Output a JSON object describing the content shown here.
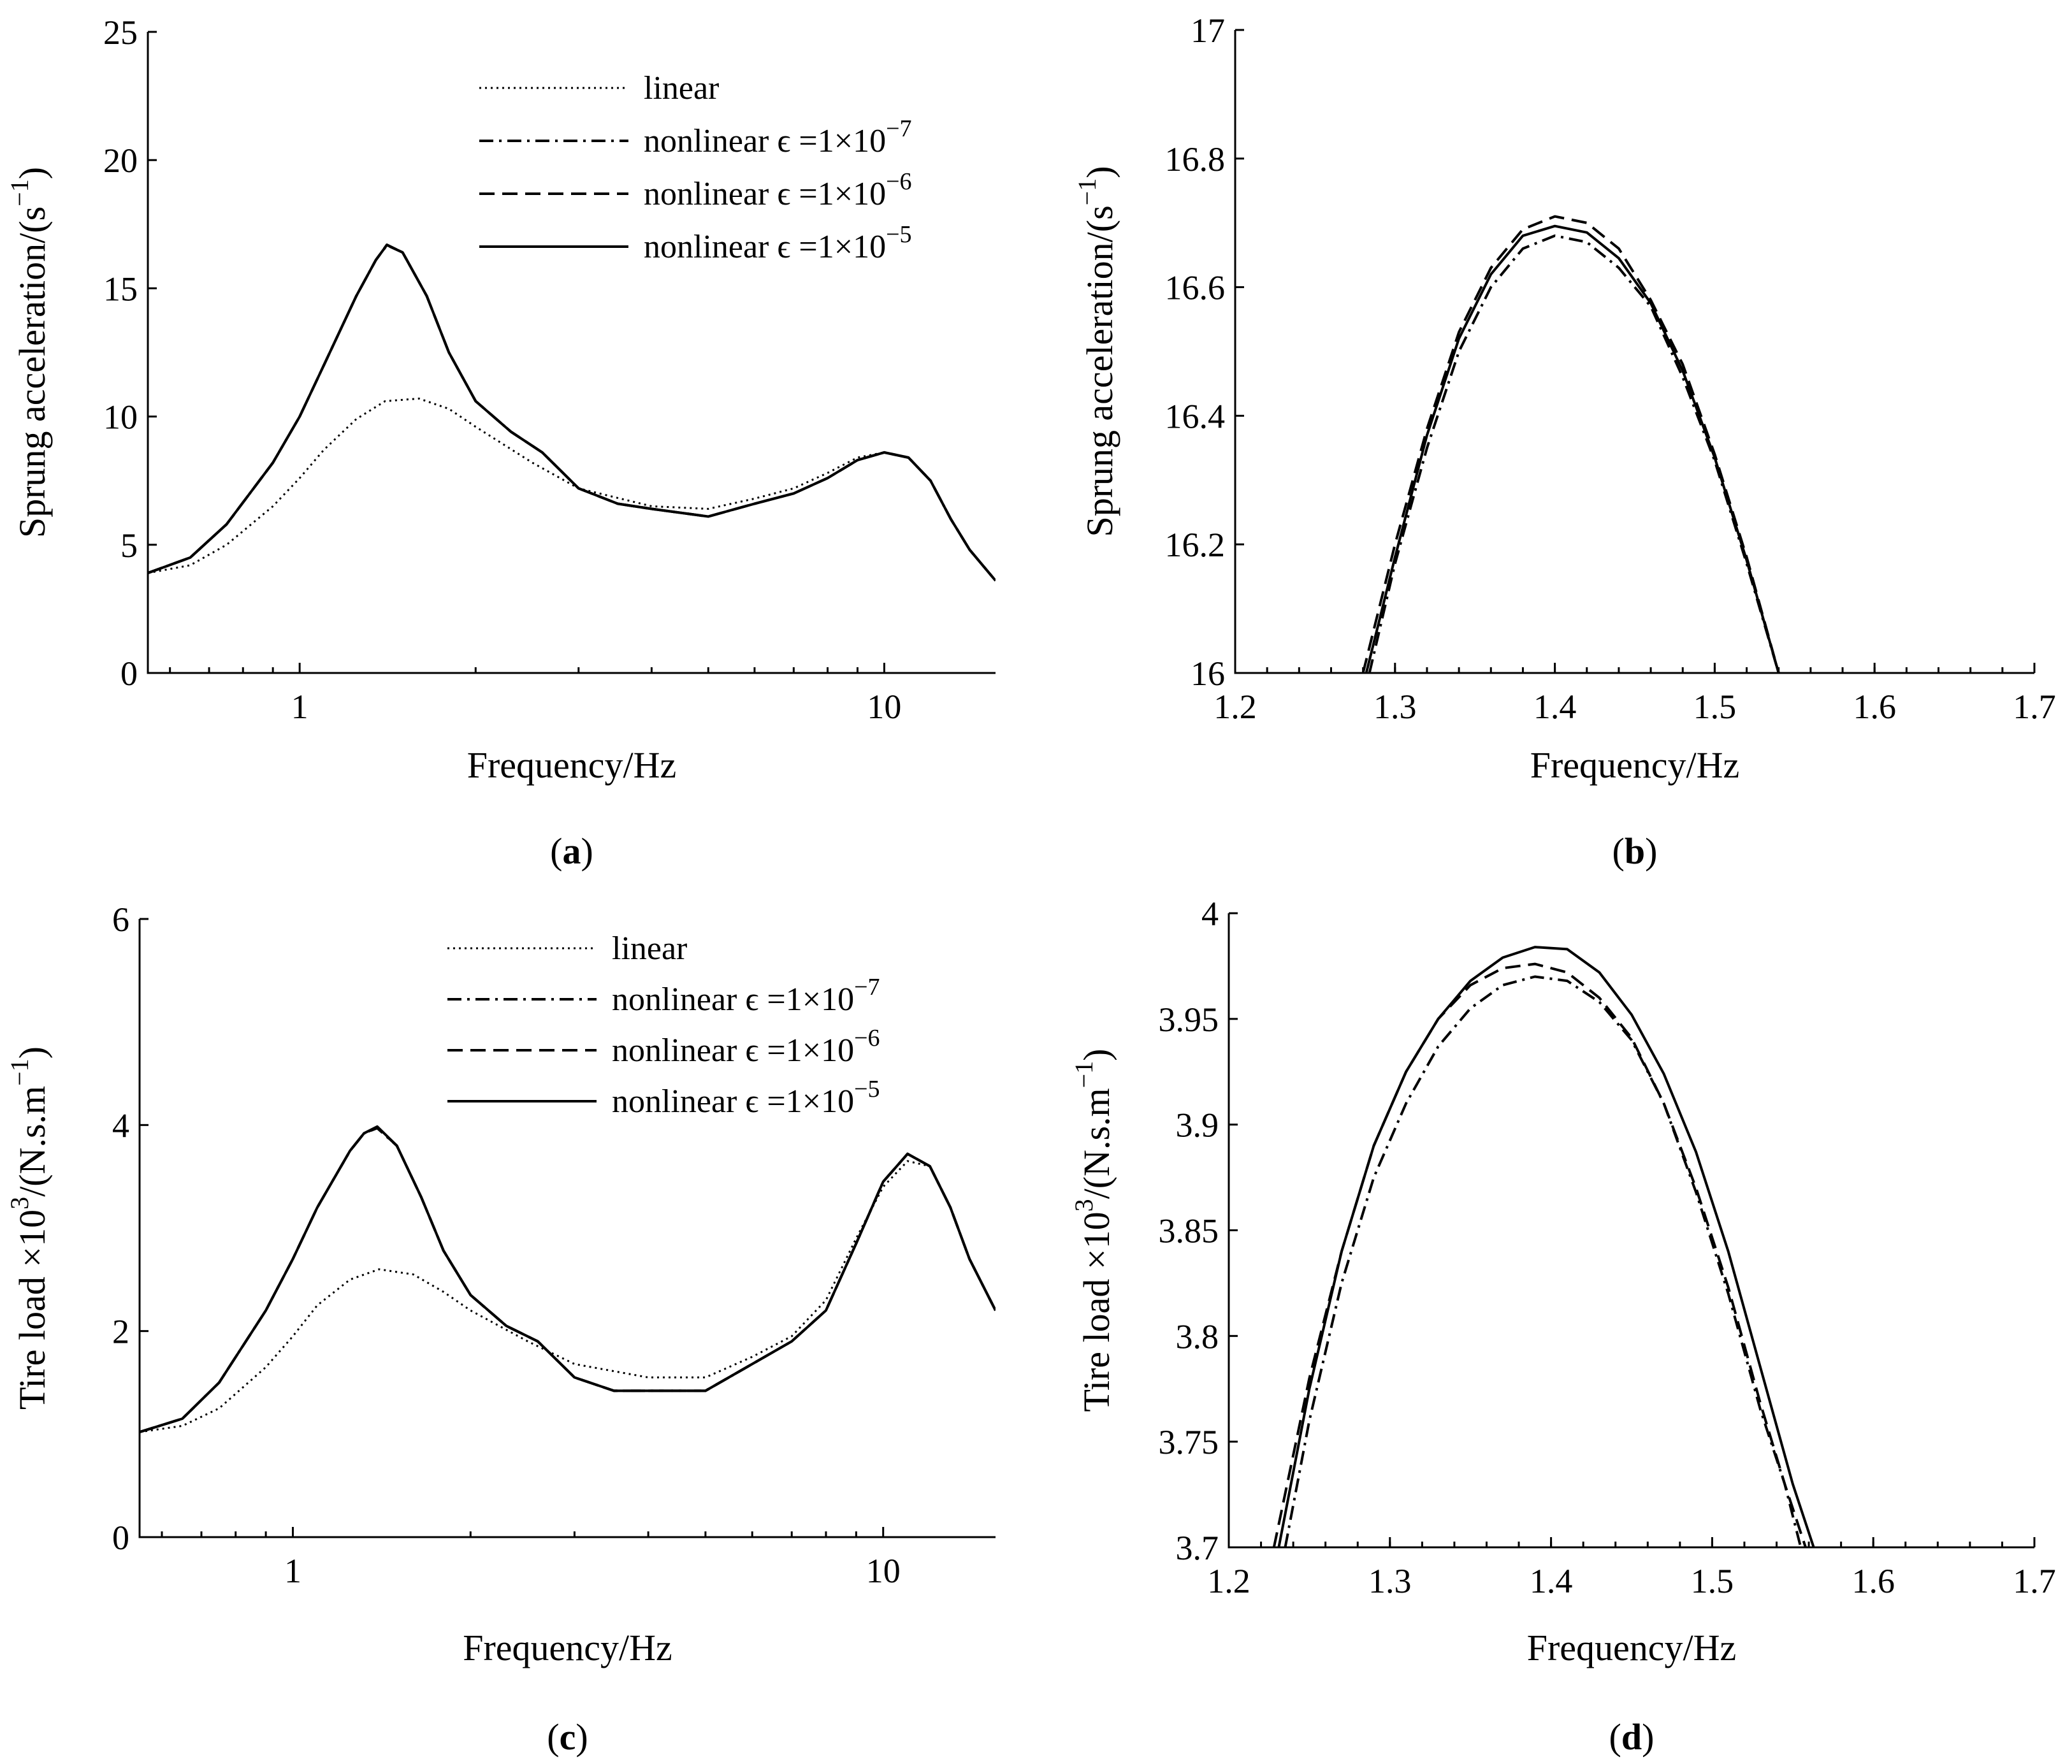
{
  "styles": [
    {
      "key": "linear",
      "width": 3,
      "dash": "3,6"
    },
    {
      "key": "e7",
      "width": 4,
      "dash": "22,9,4,9"
    },
    {
      "key": "e6",
      "width": 4,
      "dash": "24,12"
    },
    {
      "key": "e5",
      "width": 4,
      "dash": ""
    }
  ],
  "chart_data": [
    {
      "id": "a",
      "type": "line",
      "xscale": "log",
      "xlim": [
        0.55,
        15.5
      ],
      "ylim": [
        0,
        25
      ],
      "xticks": [
        1,
        10
      ],
      "xtick_labels": [
        "1",
        "10"
      ],
      "yticks": [
        0,
        5,
        10,
        15,
        20,
        25
      ],
      "ytick_labels": [
        "0",
        "5",
        "10",
        "15",
        "20",
        "25"
      ],
      "xlabel": "Frequency/Hz",
      "ylabel": "Sprung acceleration/(s",
      "ylabel_sup": "−1",
      "ylabel_close": ")",
      "caption": "a",
      "legend": {
        "placement": "top-center",
        "entries": [
          {
            "label": "linear",
            "sup": ""
          },
          {
            "label": "nonlinear ϵ =1×10",
            "sup": "−7"
          },
          {
            "label": "nonlinear ϵ =1×10",
            "sup": "−6"
          },
          {
            "label": "nonlinear ϵ =1×10",
            "sup": "−5"
          }
        ]
      },
      "series": [
        {
          "name": "linear",
          "style": 0,
          "x": [
            0.55,
            0.65,
            0.75,
            0.9,
            1.0,
            1.1,
            1.25,
            1.4,
            1.6,
            1.8,
            2.0,
            2.5,
            3.0,
            4.0,
            5.0,
            6.0,
            7.0,
            8.0,
            9.0,
            10.0,
            11.0,
            12.0,
            13.0,
            14.0,
            15.5
          ],
          "y": [
            3.9,
            4.2,
            5.0,
            6.5,
            7.6,
            8.7,
            9.9,
            10.6,
            10.7,
            10.3,
            9.6,
            8.2,
            7.2,
            6.5,
            6.4,
            6.8,
            7.2,
            7.8,
            8.4,
            8.6,
            8.4,
            7.5,
            6.0,
            4.8,
            3.6
          ]
        },
        {
          "name": "nonlinear ϵ =1×10⁻⁷",
          "style": 1,
          "x": [
            0.55,
            0.65,
            0.75,
            0.9,
            1.0,
            1.1,
            1.25,
            1.35,
            1.41,
            1.5,
            1.65,
            1.8,
            2.0,
            2.3,
            2.6,
            3.0,
            3.5,
            4.0,
            5.0,
            6.0,
            7.0,
            8.0,
            9.0,
            10.0,
            11.0,
            12.0,
            13.0,
            14.0,
            15.5
          ],
          "y": [
            3.9,
            4.5,
            5.8,
            8.2,
            10.0,
            12.0,
            14.7,
            16.1,
            16.68,
            16.4,
            14.7,
            12.5,
            10.6,
            9.4,
            8.6,
            7.2,
            6.6,
            6.4,
            6.1,
            6.6,
            7.0,
            7.6,
            8.3,
            8.6,
            8.4,
            7.5,
            6.0,
            4.8,
            3.6
          ]
        },
        {
          "name": "nonlinear ϵ =1×10⁻⁶",
          "style": 2,
          "x": [
            0.55,
            0.65,
            0.75,
            0.9,
            1.0,
            1.1,
            1.25,
            1.35,
            1.41,
            1.5,
            1.65,
            1.8,
            2.0,
            2.3,
            2.6,
            3.0,
            3.5,
            4.0,
            5.0,
            6.0,
            7.0,
            8.0,
            9.0,
            10.0,
            11.0,
            12.0,
            13.0,
            14.0,
            15.5
          ],
          "y": [
            3.9,
            4.5,
            5.8,
            8.2,
            10.0,
            12.0,
            14.7,
            16.1,
            16.7,
            16.4,
            14.7,
            12.5,
            10.6,
            9.4,
            8.6,
            7.2,
            6.6,
            6.4,
            6.1,
            6.6,
            7.0,
            7.6,
            8.3,
            8.6,
            8.4,
            7.5,
            6.0,
            4.8,
            3.6
          ]
        },
        {
          "name": "nonlinear ϵ =1×10⁻⁵",
          "style": 3,
          "x": [
            0.55,
            0.65,
            0.75,
            0.9,
            1.0,
            1.1,
            1.25,
            1.35,
            1.41,
            1.5,
            1.65,
            1.8,
            2.0,
            2.3,
            2.6,
            3.0,
            3.5,
            4.0,
            5.0,
            6.0,
            7.0,
            8.0,
            9.0,
            10.0,
            11.0,
            12.0,
            13.0,
            14.0,
            15.5
          ],
          "y": [
            3.9,
            4.5,
            5.8,
            8.2,
            10.0,
            12.0,
            14.7,
            16.1,
            16.69,
            16.4,
            14.7,
            12.5,
            10.6,
            9.4,
            8.6,
            7.2,
            6.6,
            6.4,
            6.1,
            6.6,
            7.0,
            7.6,
            8.3,
            8.6,
            8.4,
            7.5,
            6.0,
            4.8,
            3.6
          ]
        }
      ]
    },
    {
      "id": "b",
      "type": "line",
      "xscale": "linear",
      "xlim": [
        1.2,
        1.7
      ],
      "ylim": [
        16,
        17
      ],
      "xticks": [
        1.2,
        1.3,
        1.4,
        1.5,
        1.6,
        1.7
      ],
      "xtick_labels": [
        "1.2",
        "1.3",
        "1.4",
        "1.5",
        "1.6",
        "1.7"
      ],
      "yticks": [
        16,
        16.2,
        16.4,
        16.6,
        16.8,
        17
      ],
      "ytick_labels": [
        "16",
        "16.2",
        "16.4",
        "16.6",
        "16.8",
        "17"
      ],
      "xlabel": "Frequency/Hz",
      "ylabel": "Sprung acceleration/(s",
      "ylabel_sup": "−1",
      "ylabel_close": ")",
      "caption": "b",
      "series": [
        {
          "name": "nonlinear ϵ =1×10⁻⁷",
          "style": 1,
          "x": [
            1.284,
            1.3,
            1.32,
            1.34,
            1.36,
            1.38,
            1.4,
            1.42,
            1.44,
            1.46,
            1.48,
            1.5,
            1.52,
            1.54
          ],
          "y": [
            16.0,
            16.17,
            16.35,
            16.5,
            16.6,
            16.66,
            16.68,
            16.67,
            16.63,
            16.57,
            16.46,
            16.33,
            16.17,
            16.0
          ]
        },
        {
          "name": "nonlinear ϵ =1×10⁻⁶",
          "style": 2,
          "x": [
            1.28,
            1.3,
            1.32,
            1.34,
            1.36,
            1.38,
            1.4,
            1.42,
            1.44,
            1.46,
            1.48,
            1.5,
            1.52,
            1.54
          ],
          "y": [
            16.0,
            16.2,
            16.38,
            16.53,
            16.63,
            16.69,
            16.71,
            16.7,
            16.66,
            16.58,
            16.48,
            16.34,
            16.18,
            16.0
          ]
        },
        {
          "name": "nonlinear ϵ =1×10⁻⁵",
          "style": 3,
          "x": [
            1.282,
            1.3,
            1.32,
            1.34,
            1.36,
            1.38,
            1.4,
            1.42,
            1.44,
            1.46,
            1.48,
            1.5,
            1.52,
            1.54
          ],
          "y": [
            16.0,
            16.18,
            16.37,
            16.52,
            16.62,
            16.68,
            16.695,
            16.685,
            16.645,
            16.575,
            16.47,
            16.335,
            16.175,
            16.0
          ]
        }
      ]
    },
    {
      "id": "c",
      "type": "line",
      "xscale": "log",
      "xlim": [
        0.55,
        15.5
      ],
      "ylim": [
        0,
        6
      ],
      "xticks": [
        1,
        10
      ],
      "xtick_labels": [
        "1",
        "10"
      ],
      "yticks": [
        0,
        2,
        4,
        6
      ],
      "ytick_labels": [
        "0",
        "2",
        "4",
        "6"
      ],
      "xlabel": "Frequency/Hz",
      "ylabel": "Tire load ×10",
      "ylabel_sup": "3",
      "ylabel_mid": "/(N.s.m",
      "ylabel_sup2": "−1",
      "ylabel_close": ")",
      "caption": "c",
      "legend": {
        "placement": "top-center",
        "entries": [
          {
            "label": "linear",
            "sup": ""
          },
          {
            "label": "nonlinear ϵ =1×10",
            "sup": "−7"
          },
          {
            "label": "nonlinear ϵ =1×10",
            "sup": "−6"
          },
          {
            "label": "nonlinear ϵ =1×10",
            "sup": "−5"
          }
        ]
      },
      "series": [
        {
          "name": "linear",
          "style": 0,
          "x": [
            0.55,
            0.65,
            0.75,
            0.9,
            1.0,
            1.1,
            1.25,
            1.4,
            1.6,
            1.8,
            2.0,
            2.5,
            3.0,
            4.0,
            5.0,
            6.0,
            7.0,
            8.0,
            9.0,
            10.0,
            11.0,
            12.0,
            13.0,
            14.0,
            15.5
          ],
          "y": [
            1.02,
            1.08,
            1.25,
            1.65,
            1.95,
            2.25,
            2.5,
            2.6,
            2.55,
            2.38,
            2.2,
            1.9,
            1.68,
            1.55,
            1.55,
            1.75,
            1.95,
            2.3,
            2.9,
            3.4,
            3.65,
            3.6,
            3.2,
            2.7,
            2.2
          ]
        },
        {
          "name": "nonlinear ϵ =1×10⁻⁷",
          "style": 1,
          "x": [
            0.55,
            0.65,
            0.75,
            0.9,
            1.0,
            1.1,
            1.25,
            1.32,
            1.39,
            1.5,
            1.65,
            1.8,
            2.0,
            2.3,
            2.6,
            3.0,
            3.5,
            4.0,
            5.0,
            6.0,
            7.0,
            8.0,
            9.0,
            10.0,
            11.0,
            12.0,
            13.0,
            14.0,
            15.5
          ],
          "y": [
            1.02,
            1.15,
            1.5,
            2.2,
            2.7,
            3.2,
            3.75,
            3.92,
            3.97,
            3.8,
            3.3,
            2.78,
            2.35,
            2.05,
            1.9,
            1.55,
            1.42,
            1.42,
            1.42,
            1.68,
            1.9,
            2.2,
            2.85,
            3.45,
            3.72,
            3.6,
            3.2,
            2.7,
            2.2
          ]
        },
        {
          "name": "nonlinear ϵ =1×10⁻⁶",
          "style": 2,
          "x": [
            0.55,
            0.65,
            0.75,
            0.9,
            1.0,
            1.1,
            1.25,
            1.32,
            1.39,
            1.5,
            1.65,
            1.8,
            2.0,
            2.3,
            2.6,
            3.0,
            3.5,
            4.0,
            5.0,
            6.0,
            7.0,
            8.0,
            9.0,
            10.0,
            11.0,
            12.0,
            13.0,
            14.0,
            15.5
          ],
          "y": [
            1.02,
            1.15,
            1.5,
            2.2,
            2.7,
            3.2,
            3.75,
            3.92,
            3.975,
            3.8,
            3.3,
            2.78,
            2.35,
            2.05,
            1.9,
            1.55,
            1.42,
            1.42,
            1.42,
            1.68,
            1.9,
            2.2,
            2.85,
            3.45,
            3.72,
            3.6,
            3.2,
            2.7,
            2.2
          ]
        },
        {
          "name": "nonlinear ϵ =1×10⁻⁵",
          "style": 3,
          "x": [
            0.55,
            0.65,
            0.75,
            0.9,
            1.0,
            1.1,
            1.25,
            1.32,
            1.39,
            1.5,
            1.65,
            1.8,
            2.0,
            2.3,
            2.6,
            3.0,
            3.5,
            4.0,
            5.0,
            6.0,
            7.0,
            8.0,
            9.0,
            10.0,
            11.0,
            12.0,
            13.0,
            14.0,
            15.5
          ],
          "y": [
            1.02,
            1.15,
            1.5,
            2.2,
            2.7,
            3.2,
            3.75,
            3.92,
            3.985,
            3.8,
            3.3,
            2.78,
            2.35,
            2.05,
            1.9,
            1.55,
            1.42,
            1.42,
            1.42,
            1.68,
            1.9,
            2.2,
            2.85,
            3.45,
            3.72,
            3.6,
            3.2,
            2.7,
            2.2
          ]
        }
      ]
    },
    {
      "id": "d",
      "type": "line",
      "xscale": "linear",
      "xlim": [
        1.2,
        1.7
      ],
      "ylim": [
        3.7,
        4.0
      ],
      "xticks": [
        1.2,
        1.3,
        1.4,
        1.5,
        1.6,
        1.7
      ],
      "xtick_labels": [
        "1.2",
        "1.3",
        "1.4",
        "1.5",
        "1.6",
        "1.7"
      ],
      "yticks": [
        3.7,
        3.75,
        3.8,
        3.85,
        3.9,
        3.95,
        4.0
      ],
      "ytick_labels": [
        "3.7",
        "3.75",
        "3.8",
        "3.85",
        "3.9",
        "3.95",
        "4"
      ],
      "xlabel": "Frequency/Hz",
      "ylabel": "Tire load ×10",
      "ylabel_sup": "3",
      "ylabel_mid": "/(N.s.m",
      "ylabel_sup2": "−1",
      "ylabel_close": ")",
      "caption": "d",
      "series": [
        {
          "name": "nonlinear ϵ =1×10⁻⁷",
          "style": 1,
          "x": [
            1.235,
            1.25,
            1.27,
            1.29,
            1.31,
            1.33,
            1.35,
            1.37,
            1.39,
            1.41,
            1.43,
            1.45,
            1.47,
            1.49,
            1.51,
            1.53,
            1.545,
            1.555
          ],
          "y": [
            3.7,
            3.76,
            3.825,
            3.875,
            3.91,
            3.937,
            3.955,
            3.966,
            3.97,
            3.968,
            3.958,
            3.94,
            3.91,
            3.868,
            3.82,
            3.765,
            3.73,
            3.7
          ]
        },
        {
          "name": "nonlinear ϵ =1×10⁻⁶",
          "style": 2,
          "x": [
            1.228,
            1.25,
            1.27,
            1.29,
            1.31,
            1.33,
            1.35,
            1.37,
            1.39,
            1.41,
            1.43,
            1.45,
            1.47,
            1.49,
            1.51,
            1.53,
            1.545,
            1.558
          ],
          "y": [
            3.7,
            3.78,
            3.84,
            3.89,
            3.925,
            3.95,
            3.966,
            3.974,
            3.976,
            3.972,
            3.96,
            3.941,
            3.91,
            3.87,
            3.823,
            3.768,
            3.73,
            3.7
          ]
        },
        {
          "name": "nonlinear ϵ =1×10⁻⁵",
          "style": 3,
          "x": [
            1.231,
            1.25,
            1.27,
            1.29,
            1.31,
            1.33,
            1.35,
            1.37,
            1.39,
            1.41,
            1.43,
            1.45,
            1.47,
            1.49,
            1.51,
            1.53,
            1.55,
            1.563
          ],
          "y": [
            3.7,
            3.775,
            3.84,
            3.89,
            3.925,
            3.95,
            3.968,
            3.979,
            3.984,
            3.983,
            3.972,
            3.952,
            3.924,
            3.887,
            3.84,
            3.785,
            3.73,
            3.7
          ]
        }
      ]
    }
  ]
}
